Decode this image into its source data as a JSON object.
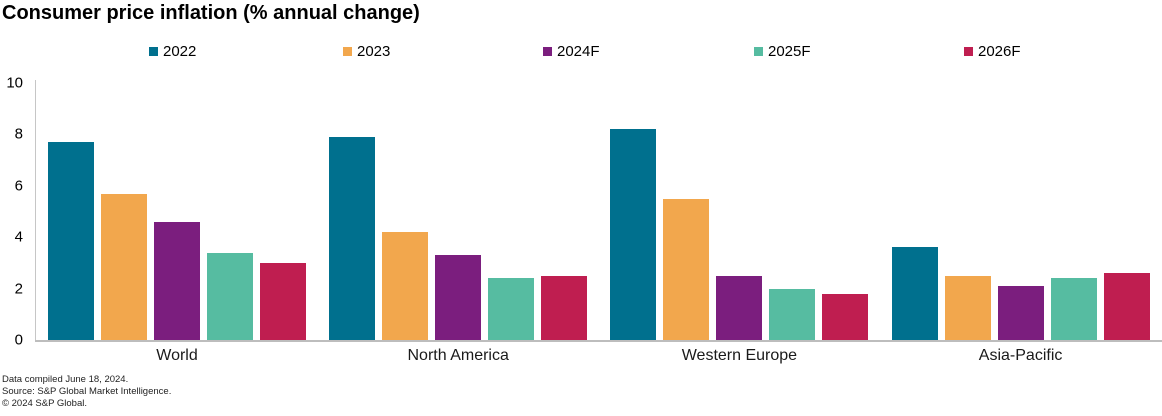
{
  "title": "Consumer price inflation (% annual change)",
  "footer": {
    "line1": "Data compiled June 18, 2024.",
    "line2": "Source: S&P Global Market Intelligence.",
    "line3": "© 2024 S&P Global."
  },
  "chart_data": {
    "type": "bar",
    "title": "Consumer price inflation (% annual change)",
    "categories": [
      "World",
      "North America",
      "Western Europe",
      "Asia-Pacific"
    ],
    "series": [
      {
        "name": "2022",
        "color": "#00708E",
        "values": [
          7.7,
          7.9,
          8.2,
          3.6
        ]
      },
      {
        "name": "2023",
        "color": "#F2A74D",
        "values": [
          5.7,
          4.2,
          5.5,
          2.5
        ]
      },
      {
        "name": "2024F",
        "color": "#7B1E7E",
        "values": [
          4.6,
          3.3,
          2.5,
          2.1
        ]
      },
      {
        "name": "2025F",
        "color": "#56BCA1",
        "values": [
          3.4,
          2.4,
          2.0,
          2.4
        ]
      },
      {
        "name": "2026F",
        "color": "#BF1E50",
        "values": [
          3.0,
          2.5,
          1.8,
          2.6
        ]
      }
    ],
    "ylim": [
      0,
      10
    ],
    "yticks": [
      0,
      2,
      4,
      6,
      8,
      10
    ],
    "grid": false,
    "legend_position": "top",
    "xlabel": "",
    "ylabel": ""
  }
}
